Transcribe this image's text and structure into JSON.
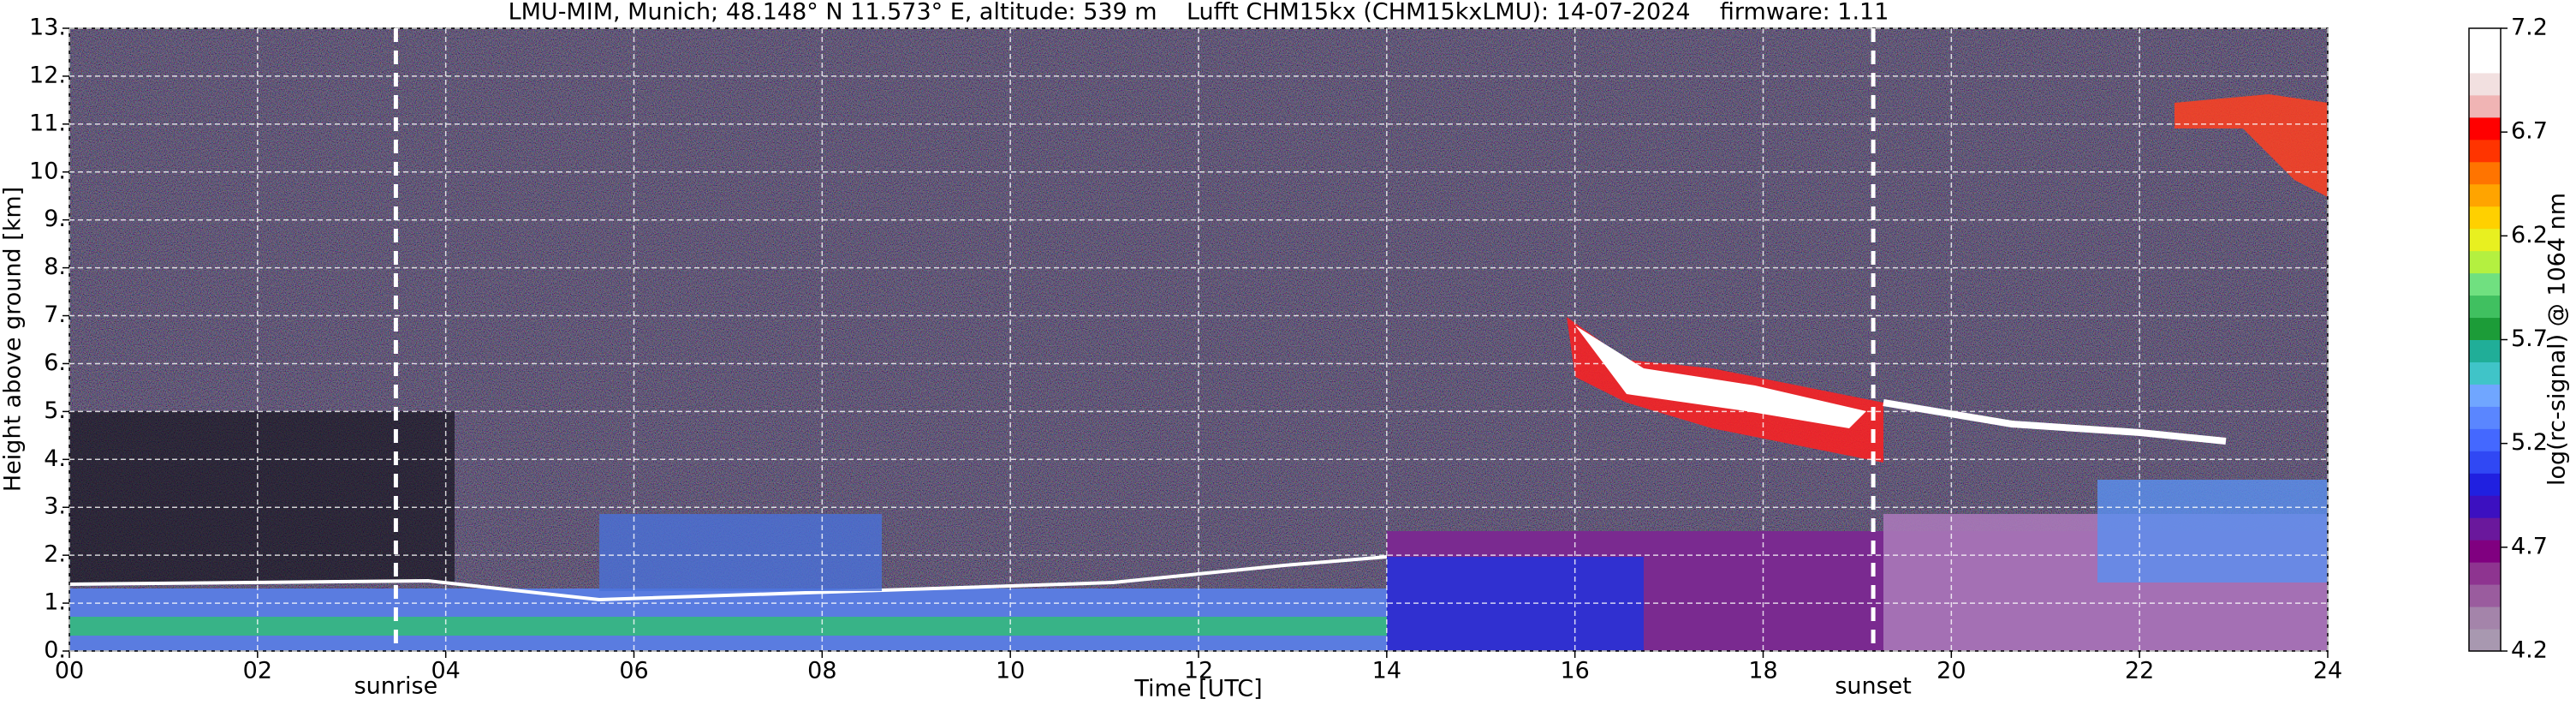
{
  "chart_data": {
    "type": "heatmap",
    "title": "LMU-MIM, Munich; 48.148° N 11.573° E, altitude: 539 m    Lufft CHM15kx (CHM15kxLMU): 14-07-2024    firmware: 1.11",
    "x_label": "Time [UTC]",
    "y_label": "Height above ground [km]",
    "colorbar_label": "log(rc-signal) @ 1064 nm",
    "xlim": [
      0,
      24
    ],
    "xticks": [
      {
        "value": 0,
        "label": "00"
      },
      {
        "value": 2,
        "label": "02"
      },
      {
        "value": 4,
        "label": "04"
      },
      {
        "value": 6,
        "label": "06"
      },
      {
        "value": 8,
        "label": "08"
      },
      10,
      12,
      14,
      16,
      18,
      20,
      22,
      24
    ],
    "ylim": [
      0,
      13
    ],
    "yticks": [
      {
        "value": 0,
        "label": "0."
      },
      {
        "value": 1,
        "label": "1."
      },
      {
        "value": 2,
        "label": "2."
      },
      {
        "value": 3,
        "label": "3."
      },
      {
        "value": 4,
        "label": "4."
      },
      {
        "value": 5,
        "label": "5."
      },
      {
        "value": 6,
        "label": "6."
      },
      {
        "value": 7,
        "label": "7."
      },
      {
        "value": 8,
        "label": "8."
      },
      {
        "value": 9,
        "label": "9."
      },
      {
        "value": 10,
        "label": "10."
      },
      {
        "value": 11,
        "label": "11."
      },
      {
        "value": 12,
        "label": "12."
      },
      {
        "value": 13,
        "label": "13."
      }
    ],
    "clim": [
      4.2,
      7.2
    ],
    "cticks": [
      4.2,
      4.7,
      5.2,
      5.7,
      6.2,
      6.7,
      7.2
    ],
    "colormap": [
      "#a898b0",
      "#a484aa",
      "#9a5c9e",
      "#8e3490",
      "#800080",
      "#6a189c",
      "#3c10c0",
      "#2020e0",
      "#3048f4",
      "#4468ff",
      "#5a86ff",
      "#70a6ff",
      "#40c4c8",
      "#20ae98",
      "#1c9c38",
      "#40c060",
      "#70e080",
      "#b4f040",
      "#e8f020",
      "#ffd000",
      "#ffa400",
      "#ff7400",
      "#ff3400",
      "#ff0000",
      "#f0b4b4",
      "#f2e0e0",
      "#ffffff",
      "#ffffff"
    ],
    "grid": true,
    "annotations": [
      {
        "x": 3.47,
        "label": "sunrise"
      },
      {
        "x": 19.17,
        "label": "sunset"
      }
    ]
  }
}
